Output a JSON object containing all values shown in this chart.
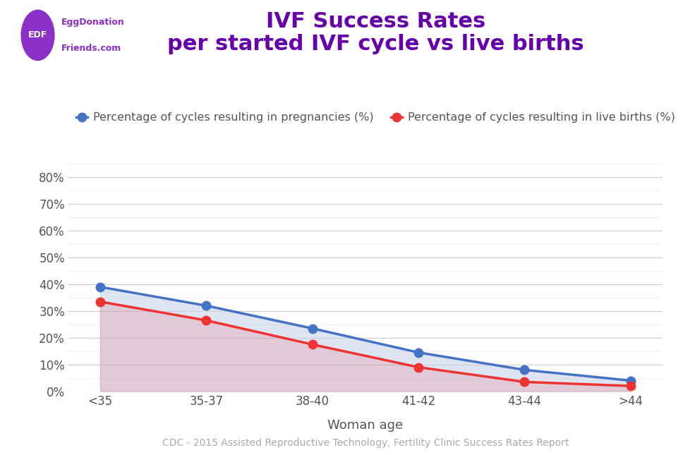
{
  "title_line1": "IVF Success Rates",
  "title_line2": "per started IVF cycle vs live births",
  "title_color": "#6600aa",
  "categories": [
    "<35",
    "35-37",
    "38-40",
    "41-42",
    "43-44",
    ">44"
  ],
  "pregnancies": [
    0.39,
    0.32,
    0.235,
    0.145,
    0.08,
    0.04
  ],
  "live_births": [
    0.335,
    0.265,
    0.175,
    0.09,
    0.035,
    0.02
  ],
  "pregnancy_color": "#4472C4",
  "livebirth_color": "#EE3333",
  "fill_between_color": "#c5cfe8",
  "fill_below_red_color": "#c8a0b8",
  "fill_below_red_alpha": 0.55,
  "fill_between_alpha": 0.55,
  "xlabel": "Woman age",
  "ylim": [
    0,
    0.85
  ],
  "yticks": [
    0,
    0.1,
    0.2,
    0.3,
    0.4,
    0.5,
    0.6,
    0.7,
    0.8
  ],
  "ytick_labels": [
    "0%",
    "10%",
    "20%",
    "30%",
    "40%",
    "50%",
    "60%",
    "70%",
    "80%"
  ],
  "legend_pregnancy": "Percentage of cycles resulting in pregnancies (%)",
  "legend_livebirth": "Percentage of cycles resulting in live births (%)",
  "source_text": "CDC - 2015 Assisted Reproductive Technology, Fertility Clinic Success Rates Report",
  "background_color": "#ffffff",
  "major_grid_color": "#cccccc",
  "minor_grid_color": "#eeeeee",
  "line_width": 2.5,
  "marker_size": 9,
  "title_fontsize": 22,
  "axis_label_fontsize": 13,
  "tick_fontsize": 12,
  "legend_fontsize": 11.5,
  "source_fontsize": 10,
  "edf_circle_color": "#8B2FC9",
  "edf_text_color": "#ffffff",
  "edf_brand_color": "#8B2FC9"
}
